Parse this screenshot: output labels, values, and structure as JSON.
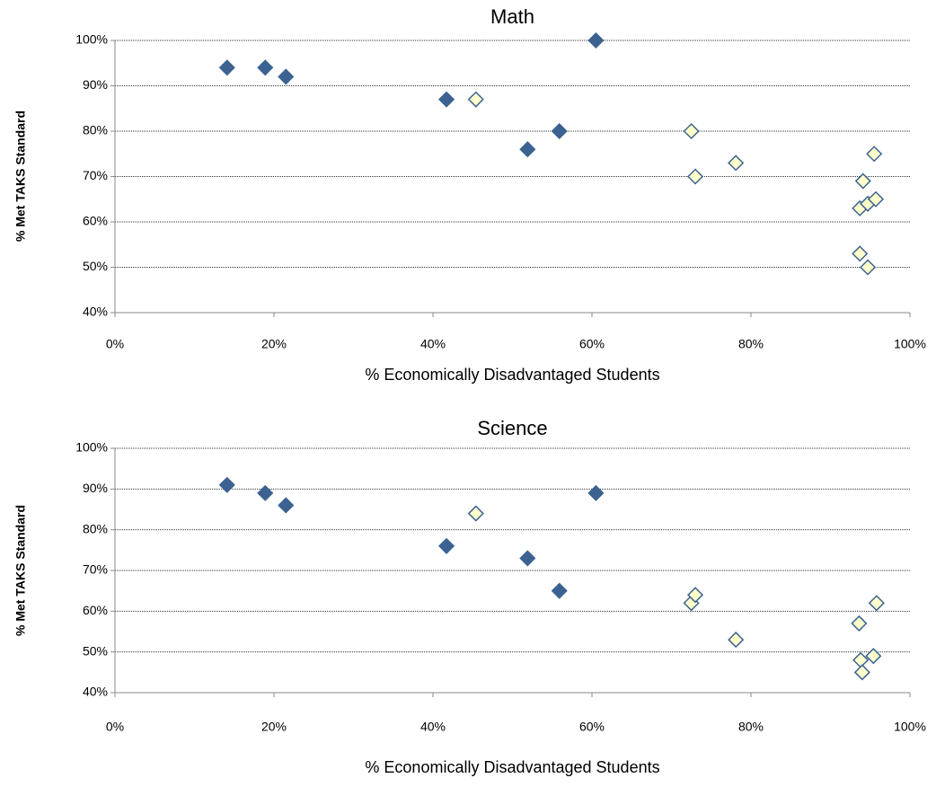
{
  "chart_data": [
    {
      "type": "scatter",
      "title": "Math",
      "x_label": "% Economically Disadvantaged Students",
      "y_label": "% Met TAKS Standard",
      "xlim": [
        0,
        100
      ],
      "ylim": [
        40,
        100
      ],
      "grid": true,
      "xticks": [
        {
          "value": 0,
          "label": "0%"
        },
        {
          "value": 20,
          "label": "20%"
        },
        {
          "value": 40,
          "label": "40%"
        },
        {
          "value": 60,
          "label": "60%"
        },
        {
          "value": 80,
          "label": "80%"
        },
        {
          "value": 100,
          "label": "100%"
        }
      ],
      "yticks": [
        {
          "value": 40,
          "label": "40%"
        },
        {
          "value": 50,
          "label": "50%"
        },
        {
          "value": 60,
          "label": "60%"
        },
        {
          "value": 70,
          "label": "70%"
        },
        {
          "value": 80,
          "label": "80%"
        },
        {
          "value": 90,
          "label": "90%"
        },
        {
          "value": 100,
          "label": "100%"
        }
      ],
      "series": [
        {
          "color": "#3B6291",
          "marker_fill": "#3B6291",
          "x": [
            14.1,
            18.9,
            21.5,
            41.7,
            51.9,
            55.9,
            60.5
          ],
          "values": [
            94,
            94,
            92,
            87,
            76,
            80,
            100
          ]
        },
        {
          "color": "#3B6291",
          "marker_fill": "#FFFFCC",
          "x": [
            45.4,
            72.5,
            73,
            78.1,
            93.7,
            94.1,
            93.7,
            94.7,
            95.7,
            95.5,
            94.7
          ],
          "values": [
            87,
            80,
            70,
            73,
            53,
            69,
            63,
            64,
            65,
            75,
            50
          ]
        }
      ]
    },
    {
      "type": "scatter",
      "title": "Science",
      "x_label": "% Economically Disadvantaged Students",
      "y_label": "% Met TAKS Standard",
      "xlim": [
        0,
        100
      ],
      "ylim": [
        40,
        100
      ],
      "grid": true,
      "xticks": [
        {
          "value": 0,
          "label": "0%"
        },
        {
          "value": 20,
          "label": "20%"
        },
        {
          "value": 40,
          "label": "40%"
        },
        {
          "value": 60,
          "label": "60%"
        },
        {
          "value": 80,
          "label": "80%"
        },
        {
          "value": 100,
          "label": "100%"
        }
      ],
      "yticks": [
        {
          "value": 40,
          "label": "40%"
        },
        {
          "value": 50,
          "label": "50%"
        },
        {
          "value": 60,
          "label": "60%"
        },
        {
          "value": 70,
          "label": "70%"
        },
        {
          "value": 80,
          "label": "80%"
        },
        {
          "value": 90,
          "label": "90%"
        },
        {
          "value": 100,
          "label": "100%"
        }
      ],
      "series": [
        {
          "color": "#3B6291",
          "marker_fill": "#3B6291",
          "x": [
            14.1,
            18.9,
            21.5,
            41.7,
            51.9,
            55.9,
            60.5
          ],
          "values": [
            91,
            89,
            86,
            76,
            73,
            65,
            89
          ]
        },
        {
          "color": "#3B6291",
          "marker_fill": "#FFFFCC",
          "x": [
            45.4,
            72.5,
            73,
            78.1,
            93.6,
            95.8,
            93.8,
            95.4,
            94
          ],
          "values": [
            84,
            62,
            64,
            53,
            57,
            62,
            48,
            49,
            45
          ]
        }
      ]
    }
  ]
}
